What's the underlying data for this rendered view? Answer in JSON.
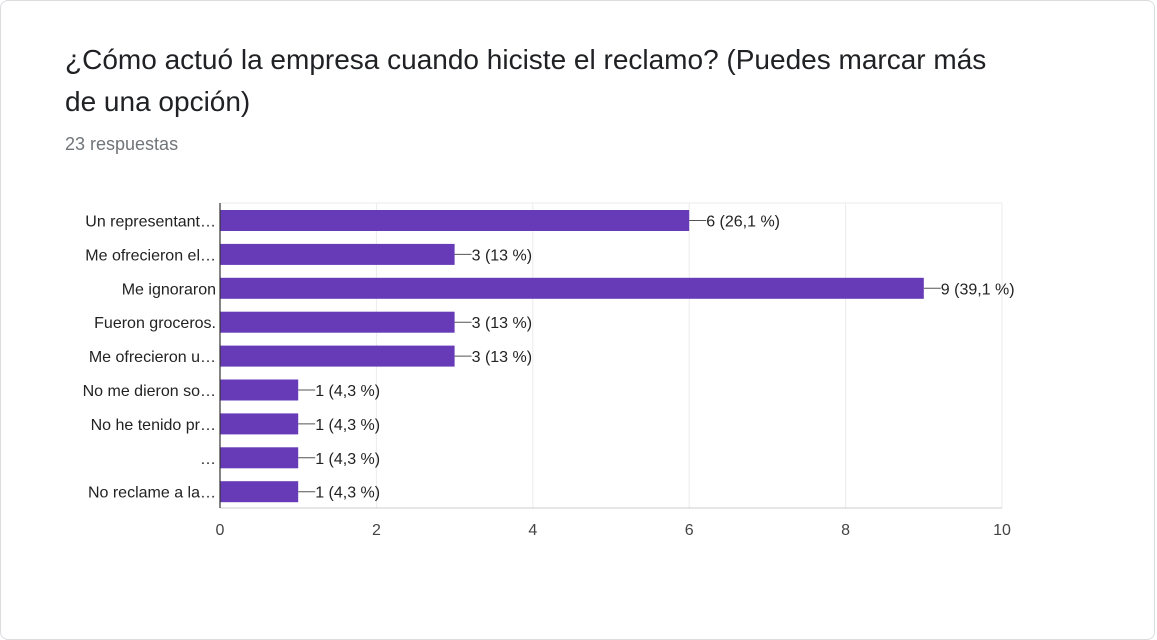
{
  "question": {
    "title": "¿Cómo actuó la empresa cuando hiciste el reclamo? (Puedes marcar más de una opción)",
    "responses": "23 respuestas"
  },
  "chart_data": {
    "type": "bar",
    "orientation": "horizontal",
    "categories": [
      "Un representant…",
      "Me ofrecieron el…",
      "Me ignoraron",
      "Fueron groceros.",
      "Me ofrecieron u…",
      "No me dieron so…",
      "No he tenido pr…",
      "…",
      "No reclame a la…"
    ],
    "values": [
      6,
      3,
      9,
      3,
      3,
      1,
      1,
      1,
      1
    ],
    "data_labels": [
      "6 (26,1 %)",
      "3 (13 %)",
      "9 (39,1 %)",
      "3 (13 %)",
      "3 (13 %)",
      "1 (4,3 %)",
      "1 (4,3 %)",
      "1 (4,3 %)",
      "1 (4,3 %)"
    ],
    "xlim": [
      0,
      10
    ],
    "x_ticks": [
      0,
      2,
      4,
      6,
      8,
      10
    ],
    "grid": true,
    "bar_color": "#673ab7",
    "grid_color": "#ebebeb",
    "text_color": "#222222"
  }
}
